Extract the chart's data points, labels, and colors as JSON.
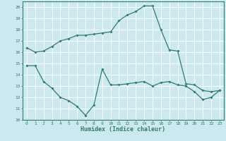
{
  "xlabel": "Humidex (Indice chaleur)",
  "ylabel": "",
  "xlim": [
    -0.5,
    23.5
  ],
  "ylim": [
    10,
    20.5
  ],
  "yticks": [
    10,
    11,
    12,
    13,
    14,
    15,
    16,
    17,
    18,
    19,
    20
  ],
  "xticks": [
    0,
    1,
    2,
    3,
    4,
    5,
    6,
    7,
    8,
    9,
    10,
    11,
    12,
    13,
    14,
    15,
    16,
    17,
    18,
    19,
    20,
    21,
    22,
    23
  ],
  "bg_color": "#cce9f0",
  "grid_color": "#ffffff",
  "line_color": "#2e7d6e",
  "curve1_x": [
    0,
    1,
    2,
    3,
    4,
    5,
    6,
    7,
    8,
    9,
    10,
    11,
    12,
    13,
    14,
    15,
    16,
    17,
    18,
    19,
    20,
    21,
    22,
    23
  ],
  "curve1_y": [
    16.4,
    16.0,
    16.1,
    16.5,
    17.0,
    17.2,
    17.5,
    17.5,
    17.6,
    17.7,
    17.8,
    18.8,
    19.3,
    19.6,
    20.1,
    20.1,
    18.0,
    16.2,
    16.1,
    13.2,
    13.1,
    12.6,
    12.5,
    12.6
  ],
  "curve2_x": [
    0,
    1,
    2,
    3,
    4,
    5,
    6,
    7,
    8,
    9,
    10,
    11,
    12,
    13,
    14,
    15,
    16,
    17,
    18,
    19,
    20,
    21,
    22,
    23
  ],
  "curve2_y": [
    14.8,
    14.8,
    13.4,
    12.8,
    12.0,
    11.7,
    11.2,
    10.4,
    11.3,
    14.5,
    13.1,
    13.1,
    13.2,
    13.3,
    13.4,
    13.0,
    13.3,
    13.4,
    13.1,
    13.0,
    12.5,
    11.8,
    12.0,
    12.6
  ],
  "xlabel_fontsize": 6.0,
  "tick_fontsize": 4.5
}
